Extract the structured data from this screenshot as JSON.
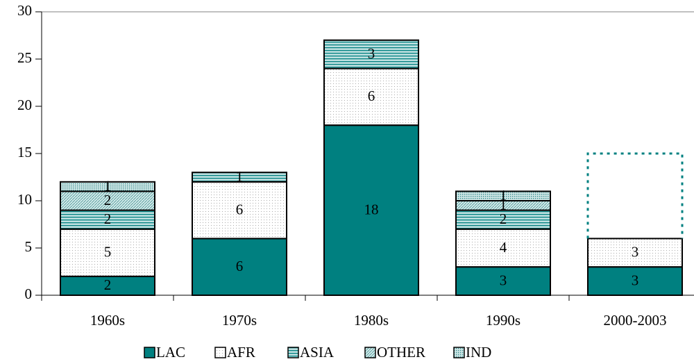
{
  "chart_data": {
    "type": "stacked-bar",
    "categories": [
      "1960s",
      "1970s",
      "1980s",
      "1990s",
      "2000-2003"
    ],
    "series": [
      {
        "name": "LAC",
        "color": "#008080",
        "pattern": "solid",
        "values": [
          2,
          6,
          18,
          3,
          3
        ]
      },
      {
        "name": "AFR",
        "color": "#9a9a9a",
        "pattern": "dots",
        "values": [
          5,
          6,
          6,
          4,
          3
        ]
      },
      {
        "name": "ASIA",
        "color": "#008080",
        "pattern": "hlines",
        "values": [
          2,
          1,
          3,
          2,
          null
        ]
      },
      {
        "name": "OTHER",
        "color": "#008080",
        "pattern": "diagonal",
        "values": [
          2,
          null,
          null,
          1,
          null
        ]
      },
      {
        "name": "IND",
        "color": "#008080",
        "pattern": "dense-dots",
        "values": [
          1,
          null,
          null,
          1,
          null
        ]
      }
    ],
    "outline": {
      "category_index": 4,
      "bottom": 6,
      "top": 15,
      "color": "#008080"
    },
    "ylim": [
      0,
      30
    ],
    "yticks": [
      0,
      5,
      10,
      15,
      20,
      25,
      30
    ]
  }
}
